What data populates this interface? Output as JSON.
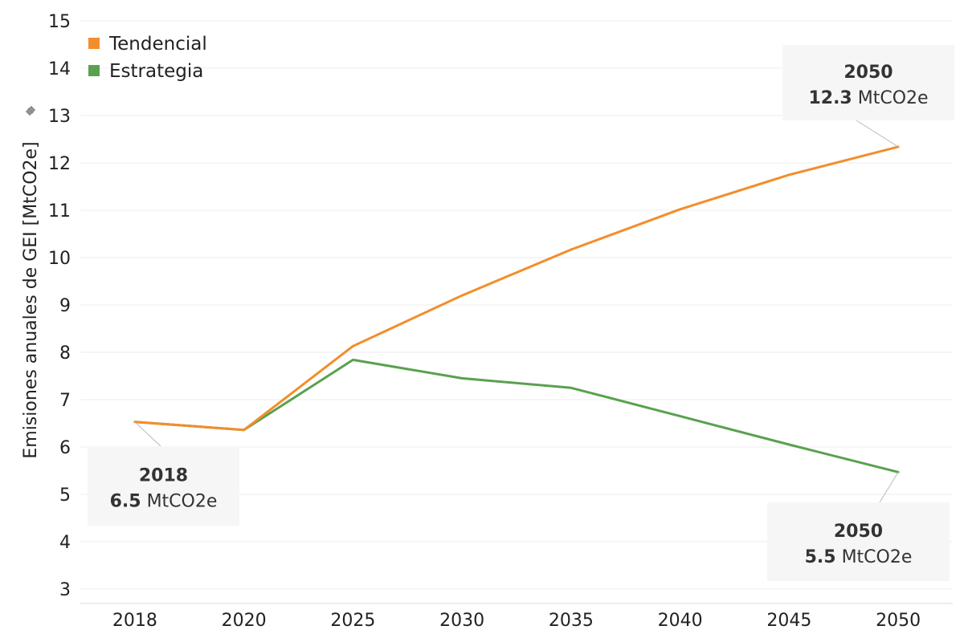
{
  "chart_data": {
    "type": "line",
    "categories": [
      "2018",
      "2020",
      "2025",
      "2030",
      "2035",
      "2040",
      "2045",
      "2050"
    ],
    "series": [
      {
        "name": "Tendencial",
        "color": "#f28e2b",
        "values": [
          6.53,
          6.36,
          8.13,
          9.2,
          10.17,
          11.02,
          11.75,
          12.34
        ]
      },
      {
        "name": "Estrategia",
        "color": "#59a14f",
        "values": [
          6.53,
          6.36,
          7.84,
          7.45,
          7.25,
          6.65,
          6.05,
          5.47
        ]
      }
    ],
    "ylabel": "Emisiones anuales de GEI [MtCO2e]",
    "ylim": [
      3,
      15
    ],
    "yticks": [
      "3",
      "4",
      "5",
      "6",
      "7",
      "8",
      "9",
      "10",
      "11",
      "12",
      "13",
      "14",
      "15"
    ],
    "grid": "horizontal",
    "legend": "top-left",
    "annotations": [
      {
        "category": "2050",
        "series": 0,
        "year": "2050",
        "value": "12.3",
        "unit": " MtCO2e"
      },
      {
        "category": "2018",
        "series": 0,
        "year": "2018",
        "value": "6.5",
        "unit": " MtCO2e"
      },
      {
        "category": "2050",
        "series": 1,
        "year": "2050",
        "value": "5.5",
        "unit": " MtCO2e"
      }
    ]
  }
}
